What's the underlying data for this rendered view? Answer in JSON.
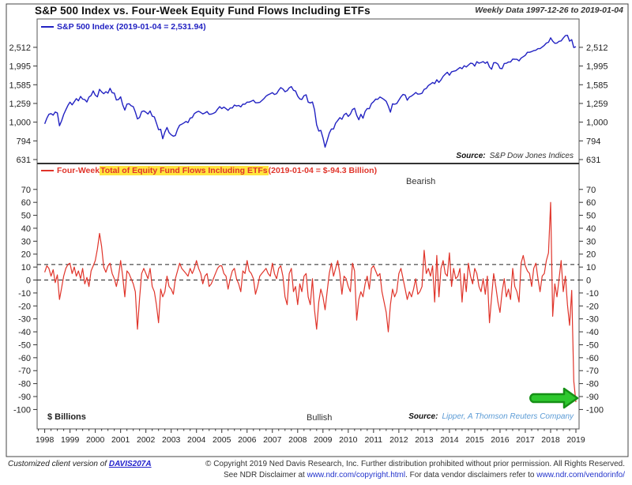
{
  "header": {
    "title": "S&P 500 Index vs. Four-Week Equity Fund Flows Including ETFs",
    "period_label": "Weekly Data 1997-12-26 to 2019-01-04"
  },
  "colors": {
    "sp500_line": "#2222c2",
    "flows_line": "#e0342a",
    "highlight": "#ffe53e",
    "arrow_fill": "#2ec82e",
    "arrow_stroke": "#169016",
    "source_accent": "#5b9bd5",
    "link": "#2222cc",
    "frame": "#444"
  },
  "top_panel": {
    "legend": "S&P 500 Index (2019-01-04 = 2,531.94)",
    "source_label": "Source:",
    "source": "S&P Dow Jones Indices"
  },
  "bottom_panel": {
    "legend_prefix": "Four-Week ",
    "legend_highlight": "Total of Equity Fund Flows Including ETFs",
    "legend_value": "(2019-01-04 = $-94.3 Billion)",
    "bearish": "Bearish",
    "bullish": "Bullish",
    "units": "$ Billions",
    "source_label": "Source:",
    "source": "Lipper, A Thomson Reuters Company"
  },
  "footer": {
    "client_prefix": "Customized client version of ",
    "client_link": "DAVIS207A",
    "copyright_line": "© Copyright 2019 Ned Davis Research, Inc. Further distribution prohibited without prior permission. All Rights Reserved.",
    "disclaimer_prefix": "See NDR Disclaimer at ",
    "disclaimer_link1": "www.ndr.com/copyright.html",
    "disclaimer_mid": ". For data vendor disclaimers refer to ",
    "disclaimer_link2": "www.ndr.com/vendorinfo/"
  },
  "x_axis": {
    "start": 1997.7,
    "end": 2019.125,
    "year_labels": [
      1998,
      1999,
      2000,
      2001,
      2002,
      2003,
      2004,
      2005,
      2006,
      2007,
      2008,
      2009,
      2010,
      2011,
      2012,
      2013,
      2014,
      2015,
      2016,
      2017,
      2018,
      2019
    ]
  },
  "chart_data": [
    {
      "type": "line",
      "name": "S&P 500 Index",
      "scale": "log",
      "x_start": 1998.0,
      "x_step_years": 0.0833333,
      "ylim": [
        601,
        3562
      ],
      "yticks": [
        2512,
        1995,
        1585,
        1259,
        1000,
        794,
        631
      ],
      "ytick_labels": [
        "2,512",
        "1,995",
        "1,585",
        "1,259",
        "1,000",
        "794",
        "631"
      ],
      "last_date": "2019-01-04",
      "last_value": 2531.94,
      "values": [
        980,
        1049,
        1101,
        1111,
        1090,
        1133,
        1120,
        957,
        1017,
        1098,
        1163,
        1229,
        1279,
        1238,
        1286,
        1335,
        1301,
        1372,
        1328,
        1320,
        1282,
        1362,
        1388,
        1469,
        1394,
        1366,
        1498,
        1452,
        1420,
        1454,
        1430,
        1517,
        1436,
        1429,
        1314,
        1320,
        1366,
        1239,
        1160,
        1249,
        1255,
        1224,
        1211,
        1133,
        1040,
        1059,
        1139,
        1148,
        1130,
        1106,
        1147,
        1076,
        1067,
        989,
        911,
        916,
        815,
        885,
        936,
        879,
        855,
        841,
        848,
        916,
        963,
        974,
        990,
        1008,
        995,
        1050,
        1058,
        1111,
        1131,
        1144,
        1126,
        1107,
        1120,
        1140,
        1101,
        1104,
        1114,
        1130,
        1173,
        1211,
        1181,
        1203,
        1180,
        1156,
        1191,
        1191,
        1234,
        1220,
        1228,
        1207,
        1249,
        1248,
        1280,
        1280,
        1294,
        1310,
        1270,
        1270,
        1276,
        1303,
        1335,
        1377,
        1400,
        1418,
        1438,
        1406,
        1420,
        1482,
        1530,
        1503,
        1455,
        1473,
        1526,
        1549,
        1481,
        1468,
        1378,
        1330,
        1322,
        1385,
        1400,
        1280,
        1267,
        1282,
        1166,
        968,
        896,
        903,
        825,
        735,
        797,
        872,
        919,
        919,
        987,
        1020,
        1057,
        1036,
        1095,
        1115,
        1073,
        1104,
        1169,
        1186,
        1089,
        1030,
        1101,
        1049,
        1141,
        1183,
        1180,
        1257,
        1286,
        1327,
        1325,
        1363,
        1345,
        1320,
        1292,
        1218,
        1131,
        1253,
        1246,
        1257,
        1312,
        1365,
        1408,
        1397,
        1310,
        1362,
        1379,
        1406,
        1440,
        1412,
        1416,
        1426,
        1498,
        1514,
        1569,
        1597,
        1630,
        1606,
        1685,
        1632,
        1681,
        1756,
        1805,
        1848,
        1782,
        1859,
        1872,
        1883,
        1923,
        1960,
        1930,
        2003,
        1972,
        2018,
        2067,
        2058,
        1994,
        2104,
        2067,
        2085,
        2107,
        2063,
        2103,
        1972,
        1920,
        2079,
        2080,
        2043,
        1940,
        1932,
        2059,
        2065,
        2096,
        2098,
        2173,
        2170,
        2168,
        2126,
        2198,
        2238,
        2278,
        2363,
        2362,
        2384,
        2411,
        2423,
        2470,
        2471,
        2519,
        2575,
        2647,
        2673,
        2823,
        2713,
        2640,
        2648,
        2705,
        2718,
        2816,
        2901,
        2913,
        2711,
        2760,
        2506,
        2531.94
      ]
    },
    {
      "type": "line",
      "name": "Four-Week Total of Equity Fund Flows Including ETFs ($ Billions)",
      "scale": "linear",
      "x_start": 1998.0,
      "x_step_years": 0.0833333,
      "ylim": [
        -115,
        90
      ],
      "yticks": [
        70,
        60,
        50,
        40,
        30,
        20,
        10,
        0,
        -10,
        -20,
        -30,
        -40,
        -50,
        -60,
        -70,
        -80,
        -90,
        -100
      ],
      "dashed_levels": [
        12,
        0
      ],
      "last_date": "2019-01-04",
      "last_value": -94.3,
      "values": [
        6,
        11,
        9,
        3,
        8,
        -2,
        4,
        -15,
        -6,
        3,
        9,
        12,
        13,
        5,
        10,
        3,
        7,
        1,
        9,
        -3,
        2,
        -5,
        7,
        11,
        15,
        24,
        36,
        26,
        10,
        6,
        11,
        13,
        5,
        1,
        -5,
        3,
        15,
        3,
        -13,
        7,
        5,
        1,
        -3,
        -9,
        -38,
        -14,
        5,
        9,
        5,
        1,
        9,
        -5,
        -9,
        -19,
        -33,
        -7,
        -13,
        -9,
        3,
        -5,
        -7,
        -11,
        1,
        7,
        13,
        9,
        7,
        5,
        3,
        9,
        5,
        9,
        15,
        9,
        5,
        -3,
        3,
        5,
        -5,
        -3,
        1,
        5,
        9,
        11,
        11,
        5,
        3,
        -7,
        1,
        7,
        9,
        1,
        -3,
        -9,
        7,
        5,
        15,
        7,
        5,
        1,
        -11,
        -5,
        3,
        5,
        7,
        9,
        5,
        3,
        13,
        5,
        1,
        9,
        11,
        3,
        -13,
        -19,
        5,
        9,
        -9,
        -5,
        -19,
        -3,
        -9,
        3,
        5,
        -13,
        -19,
        1,
        -23,
        -38,
        -17,
        -7,
        -13,
        -23,
        -9,
        5,
        13,
        3,
        9,
        15,
        5,
        -11,
        3,
        1,
        -5,
        -9,
        13,
        7,
        -31,
        -15,
        -9,
        -13,
        -3,
        3,
        -7,
        9,
        11,
        7,
        3,
        5,
        -9,
        -17,
        -25,
        -40,
        -19,
        -7,
        -13,
        -9,
        5,
        9,
        1,
        -7,
        -15,
        -9,
        -13,
        -7,
        1,
        -11,
        -9,
        -5,
        23,
        5,
        9,
        3,
        11,
        -17,
        19,
        -13,
        9,
        15,
        5,
        3,
        21,
        -5,
        9,
        1,
        3,
        9,
        -17,
        5,
        -9,
        13,
        3,
        -3,
        9,
        5,
        -5,
        -9,
        1,
        -11,
        3,
        -33,
        -13,
        5,
        -5,
        -17,
        -25,
        -9,
        1,
        -13,
        -7,
        -15,
        9,
        -5,
        -9,
        -17,
        13,
        19,
        11,
        7,
        5,
        -5,
        9,
        13,
        1,
        -9,
        3,
        5,
        15,
        21,
        60,
        -28,
        -3,
        -13,
        1,
        15,
        -9,
        3,
        -19,
        -35,
        -8,
        -78,
        -94.3
      ]
    }
  ]
}
